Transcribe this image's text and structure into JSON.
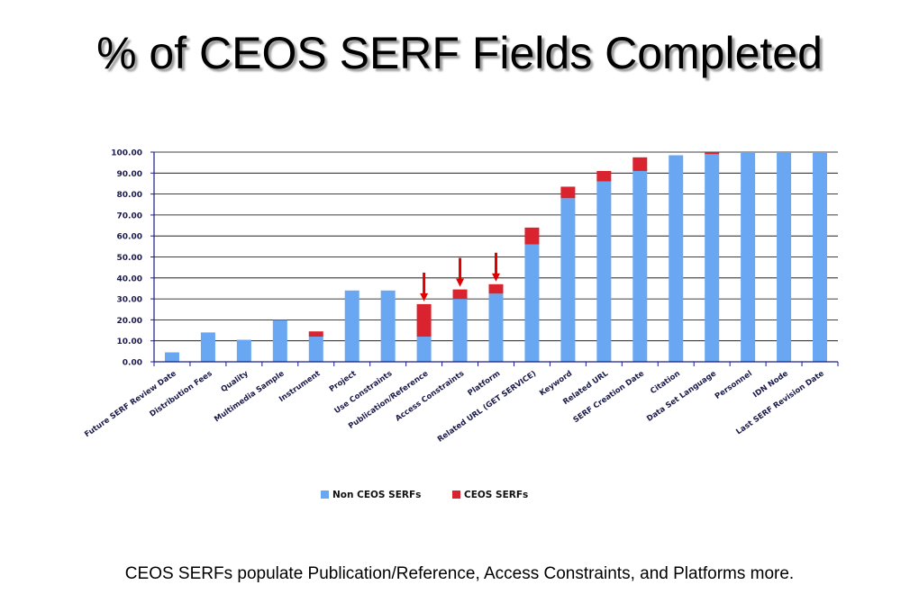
{
  "slide": {
    "title": "% of CEOS SERF Fields Completed",
    "caption": "CEOS SERFs populate Publication/Reference, Access Constraints, and Platforms more."
  },
  "colors": {
    "non_ceos": "#6aa7f2",
    "ceos": "#d9232e",
    "arrow": "#e00000",
    "axis": "#1a1a8c",
    "grid": "#000000"
  },
  "chart_data": {
    "type": "bar",
    "stacked": true,
    "categories": [
      "Future SERF Review Date",
      "Distribution Fees",
      "Quality",
      "Multimedia Sample",
      "Instrument",
      "Project",
      "Use Constraints",
      "Publication/Reference",
      "Access Constraints",
      "Platform",
      "Related URL (GET SERVICE)",
      "Keyword",
      "Related URL",
      "SERF Creation Date",
      "Citation",
      "Data Set Language",
      "Personnel",
      "IDN Node",
      "Last SERF Revision Date"
    ],
    "series": [
      {
        "name": "Non CEOS SERFs",
        "values": [
          4.5,
          14,
          10.5,
          20,
          12,
          34,
          34,
          12,
          30,
          32.5,
          56,
          78,
          86,
          91,
          98.5,
          99,
          100,
          100,
          100
        ]
      },
      {
        "name": "CEOS SERFs",
        "values": [
          0,
          0,
          0,
          0,
          2.5,
          0,
          0,
          15.5,
          4.5,
          4.5,
          8,
          5.5,
          5,
          6.5,
          0,
          1,
          0,
          0,
          0
        ]
      }
    ],
    "ylim": [
      0,
      100
    ],
    "yticks": [
      "0.00",
      "10.00",
      "20.00",
      "30.00",
      "40.00",
      "50.00",
      "60.00",
      "70.00",
      "80.00",
      "90.00",
      "100.00"
    ],
    "grid": true,
    "legend_position": "bottom",
    "annotations": [
      {
        "type": "arrow",
        "category": "Publication/Reference"
      },
      {
        "type": "arrow",
        "category": "Access Constraints"
      },
      {
        "type": "arrow",
        "category": "Platform"
      }
    ]
  }
}
